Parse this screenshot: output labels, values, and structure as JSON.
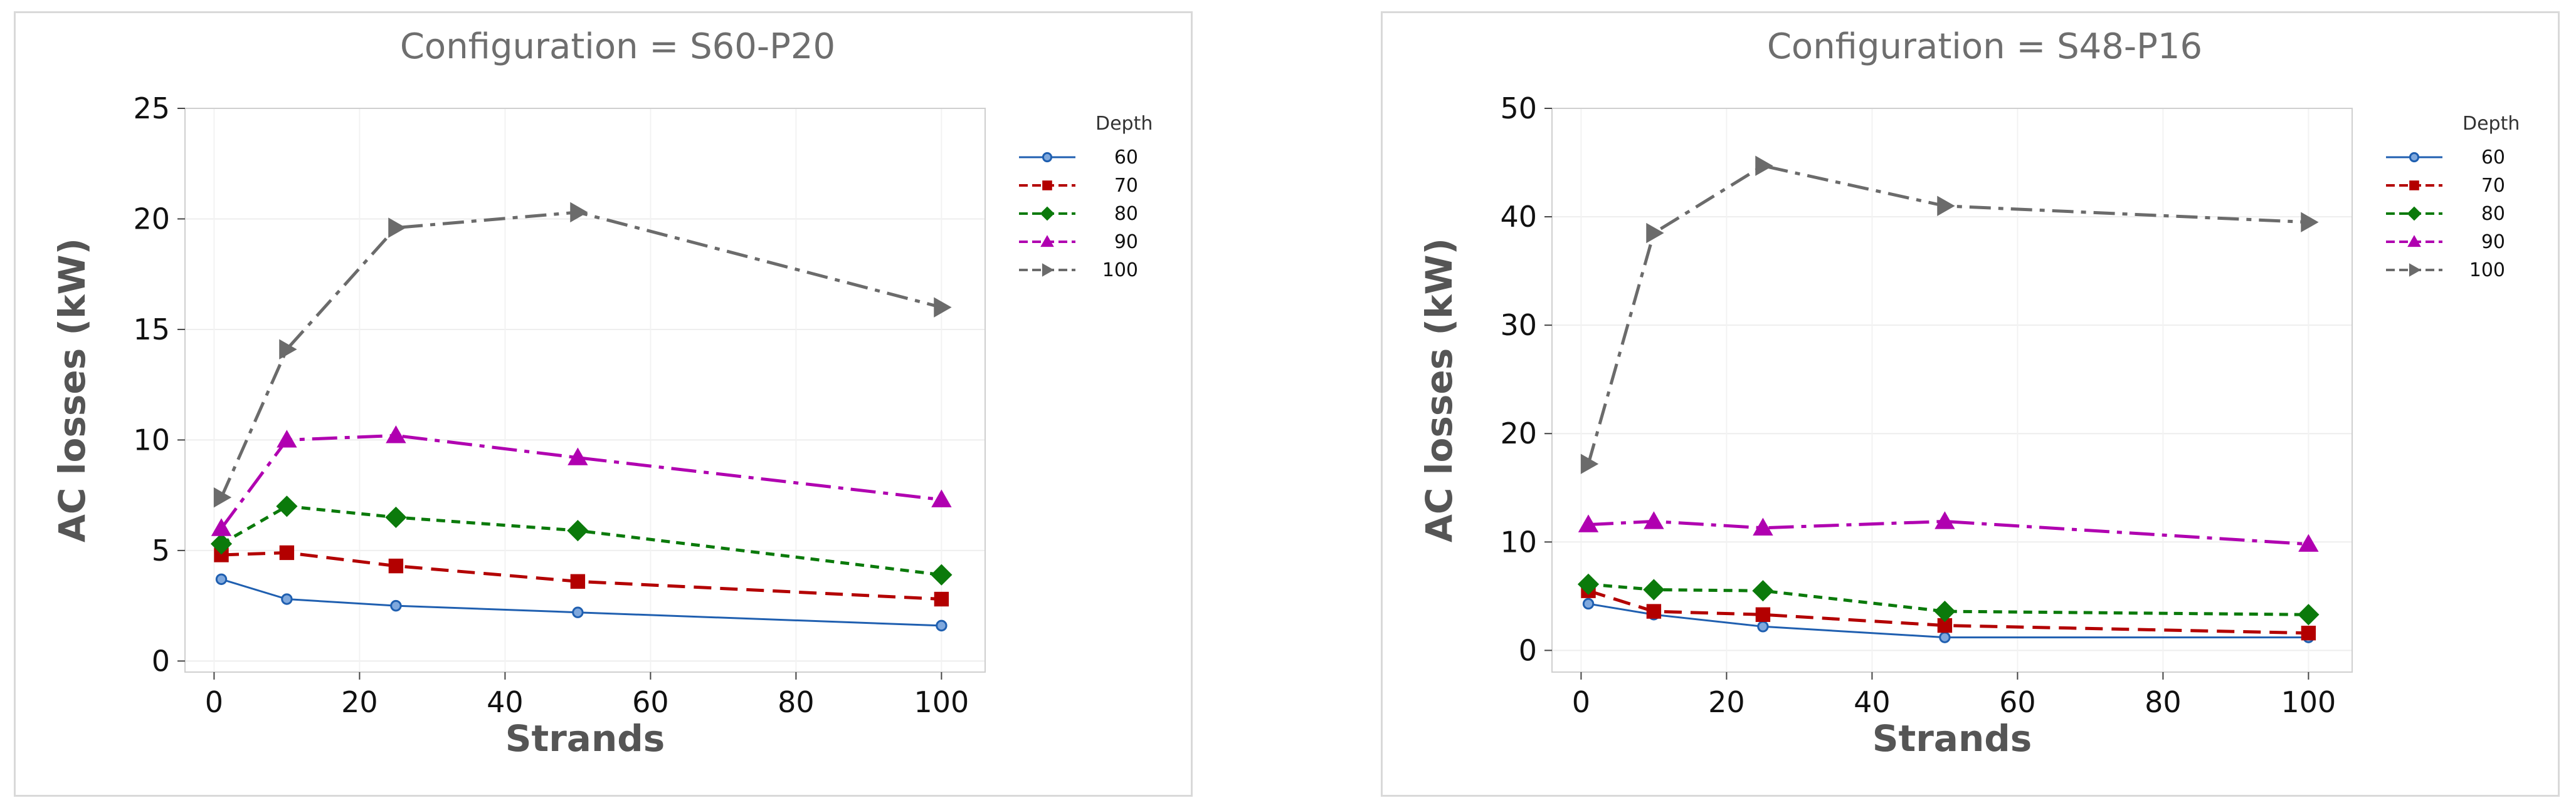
{
  "chart_data": [
    {
      "type": "line",
      "title": "Configuration = S60-P20",
      "xlabel": "Strands",
      "ylabel": "AC losses (kW)",
      "x": [
        1,
        10,
        25,
        50,
        100
      ],
      "xlim": [
        -4,
        106
      ],
      "ylim": [
        -0.5,
        25
      ],
      "xticks": [
        0,
        20,
        40,
        60,
        80,
        100
      ],
      "yticks": [
        0,
        5,
        10,
        15,
        20,
        25
      ],
      "legend_title": "Depth",
      "series": [
        {
          "name": "60",
          "values": [
            3.7,
            2.8,
            2.5,
            2.2,
            1.6
          ]
        },
        {
          "name": "70",
          "values": [
            4.8,
            4.9,
            4.3,
            3.6,
            2.8
          ]
        },
        {
          "name": "80",
          "values": [
            5.3,
            7.0,
            6.5,
            5.9,
            3.9
          ]
        },
        {
          "name": "90",
          "values": [
            6.0,
            10.0,
            10.2,
            9.2,
            7.3
          ]
        },
        {
          "name": "100",
          "values": [
            7.4,
            14.1,
            19.6,
            20.3,
            16.0
          ]
        }
      ]
    },
    {
      "type": "line",
      "title": "Configuration = S48-P16",
      "xlabel": "Strands",
      "ylabel": "AC losses (kW)",
      "x": [
        1,
        10,
        25,
        50,
        100
      ],
      "xlim": [
        -4,
        106
      ],
      "ylim": [
        -2,
        50
      ],
      "xticks": [
        0,
        20,
        40,
        60,
        80,
        100
      ],
      "yticks": [
        0,
        10,
        20,
        30,
        40,
        50
      ],
      "legend_title": "Depth",
      "series": [
        {
          "name": "60",
          "values": [
            4.3,
            3.3,
            2.2,
            1.2,
            1.2
          ]
        },
        {
          "name": "70",
          "values": [
            5.5,
            3.6,
            3.3,
            2.3,
            1.6
          ]
        },
        {
          "name": "80",
          "values": [
            6.1,
            5.6,
            5.5,
            3.6,
            3.3
          ]
        },
        {
          "name": "90",
          "values": [
            11.6,
            11.9,
            11.3,
            11.9,
            9.8
          ]
        },
        {
          "name": "100",
          "values": [
            17.2,
            38.5,
            44.7,
            41.0,
            39.5
          ]
        }
      ]
    }
  ],
  "series_styles": [
    {
      "color": "#1f5fb0",
      "marker": "circle",
      "dash": ""
    },
    {
      "color": "#b30000",
      "marker": "square",
      "dash": "28,14"
    },
    {
      "color": "#0b7a0b",
      "marker": "diamond",
      "dash": "14,10"
    },
    {
      "color": "#b000b0",
      "marker": "triangle",
      "dash": "40,12,8,12"
    },
    {
      "color": "#6b6b6b",
      "marker": "arrow",
      "dash": "34,12,8,12"
    }
  ]
}
